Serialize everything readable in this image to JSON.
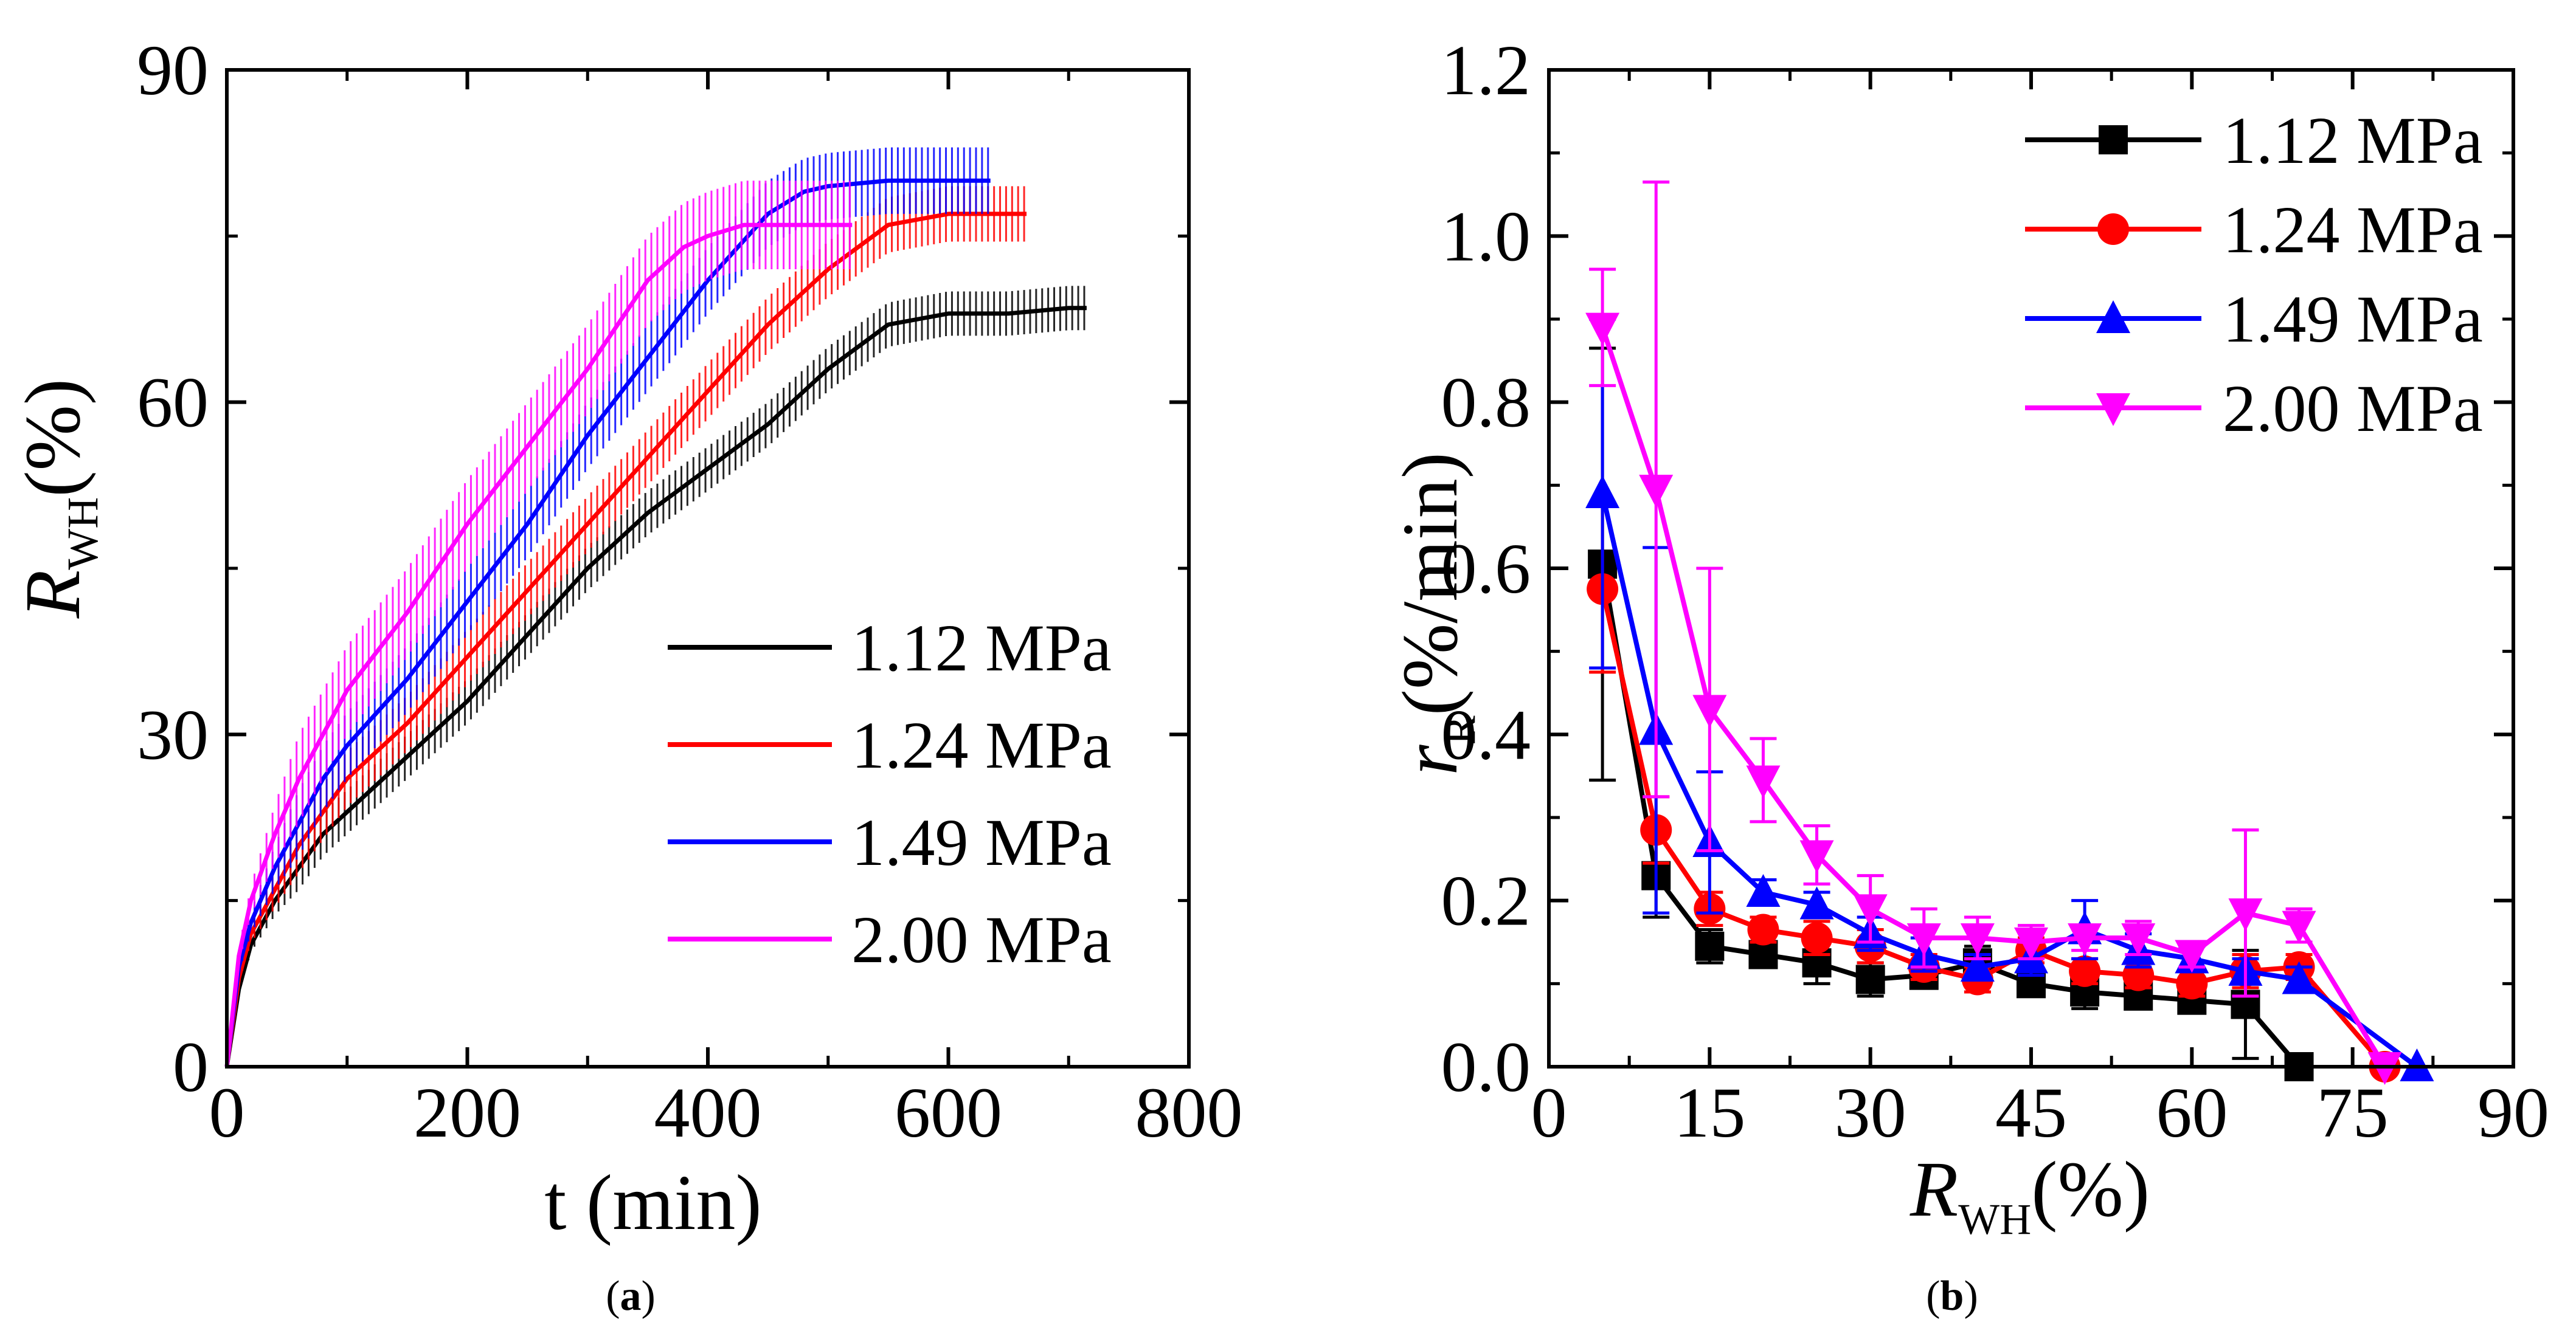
{
  "chart_data": [
    {
      "id": "a",
      "type": "line",
      "panel_label": "a",
      "xlabel": "t (min)",
      "ylabel_main": "R",
      "ylabel_sub": "WH",
      "ylabel_unit": "(%)",
      "xlim": [
        0,
        800
      ],
      "ylim": [
        0,
        90
      ],
      "xticks": [
        "0",
        "200",
        "400",
        "600",
        "800"
      ],
      "yticks": [
        "0",
        "30",
        "60",
        "90"
      ],
      "legend_position": "bottom-right",
      "series": [
        {
          "name": "1.12 MPa",
          "color": "#000000",
          "x": [
            0,
            10,
            20,
            40,
            60,
            80,
            100,
            150,
            200,
            250,
            300,
            350,
            400,
            450,
            500,
            550,
            600,
            650,
            700,
            715
          ],
          "y": [
            0,
            7,
            11,
            15,
            18,
            21,
            23,
            28,
            33,
            39,
            45,
            50,
            54,
            58,
            63,
            67,
            68,
            68,
            68.5,
            68.5
          ],
          "err": 2
        },
        {
          "name": "1.24 MPa",
          "color": "#ff0000",
          "x": [
            0,
            10,
            20,
            40,
            60,
            80,
            100,
            150,
            200,
            250,
            300,
            350,
            400,
            450,
            500,
            550,
            600,
            640,
            665
          ],
          "y": [
            0,
            8,
            12,
            16,
            20,
            23,
            26,
            31,
            37,
            43,
            49,
            55,
            61,
            67,
            72,
            76,
            77,
            77,
            77
          ],
          "err": 2.5
        },
        {
          "name": "1.49 MPa",
          "color": "#0000ff",
          "x": [
            0,
            10,
            20,
            40,
            60,
            80,
            100,
            150,
            200,
            250,
            300,
            350,
            400,
            450,
            480,
            500,
            550,
            600,
            635
          ],
          "y": [
            0,
            9,
            13,
            18,
            22,
            26,
            29,
            35,
            42,
            49,
            57,
            64,
            71,
            77,
            79,
            79.5,
            80,
            80,
            80
          ],
          "err": 3
        },
        {
          "name": "2.00 MPa",
          "color": "#ff00ff",
          "x": [
            0,
            10,
            20,
            40,
            60,
            80,
            100,
            150,
            200,
            250,
            300,
            350,
            380,
            400,
            430,
            460,
            490,
            520
          ],
          "y": [
            0,
            10,
            15,
            21,
            26,
            30,
            34,
            41,
            49,
            56,
            63,
            71,
            74,
            75,
            76,
            76,
            76,
            76
          ],
          "err": 4
        }
      ]
    },
    {
      "id": "b",
      "type": "line",
      "panel_label": "b",
      "xlabel_main": "R",
      "xlabel_sub": "WH",
      "xlabel_unit": "(%)",
      "ylabel_main": "r",
      "ylabel_sub": "R",
      "ylabel_unit": "(%/min)",
      "xlim": [
        0,
        90
      ],
      "ylim": [
        0,
        1.2
      ],
      "xticks": [
        "0",
        "15",
        "30",
        "45",
        "60",
        "75",
        "90"
      ],
      "yticks": [
        "0.0",
        "0.2",
        "0.4",
        "0.6",
        "0.8",
        "1.0",
        "1.2"
      ],
      "legend_position": "top-right",
      "series": [
        {
          "name": "1.12 MPa",
          "color": "#000000",
          "marker": "square",
          "x": [
            5,
            10,
            15,
            20,
            25,
            30,
            35,
            40,
            45,
            50,
            55,
            60,
            65,
            70
          ],
          "y": [
            0.605,
            0.23,
            0.145,
            0.135,
            0.125,
            0.105,
            0.11,
            0.125,
            0.1,
            0.09,
            0.085,
            0.08,
            0.075,
            0.0
          ],
          "err": [
            0.26,
            0.05,
            0.02,
            0.015,
            0.025,
            0.02,
            0.015,
            0.02,
            0.015,
            0.02,
            0.01,
            0.01,
            0.065,
            0
          ]
        },
        {
          "name": "1.24 MPa",
          "color": "#ff0000",
          "marker": "circle",
          "x": [
            5,
            10,
            15,
            20,
            25,
            30,
            35,
            40,
            45,
            50,
            55,
            60,
            65,
            70,
            78
          ],
          "y": [
            0.575,
            0.285,
            0.19,
            0.165,
            0.155,
            0.145,
            0.12,
            0.105,
            0.14,
            0.115,
            0.11,
            0.1,
            0.115,
            0.12,
            0.0
          ],
          "err": [
            0.1,
            0.04,
            0.02,
            0.015,
            0.02,
            0.02,
            0.015,
            0.015,
            0.015,
            0.015,
            0.015,
            0.015,
            0.02,
            0.015,
            0
          ]
        },
        {
          "name": "1.49 MPa",
          "color": "#0000ff",
          "marker": "triangle-up",
          "x": [
            5,
            10,
            15,
            20,
            25,
            30,
            35,
            40,
            45,
            50,
            55,
            60,
            65,
            70,
            81
          ],
          "y": [
            0.69,
            0.405,
            0.27,
            0.21,
            0.195,
            0.16,
            0.135,
            0.12,
            0.13,
            0.165,
            0.14,
            0.13,
            0.115,
            0.105,
            0.0
          ],
          "err": [
            0.21,
            0.22,
            0.085,
            0.015,
            0.015,
            0.02,
            0.02,
            0.015,
            0.02,
            0.035,
            0.02,
            0.015,
            0.015,
            0.015,
            0
          ]
        },
        {
          "name": "2.00 MPa",
          "color": "#ff00ff",
          "marker": "triangle-down",
          "x": [
            5,
            10,
            15,
            20,
            25,
            30,
            35,
            40,
            45,
            50,
            55,
            60,
            65,
            70,
            78
          ],
          "y": [
            0.89,
            0.695,
            0.43,
            0.345,
            0.255,
            0.19,
            0.155,
            0.155,
            0.15,
            0.155,
            0.155,
            0.135,
            0.185,
            0.17,
            0.0
          ],
          "err": [
            0.07,
            0.37,
            0.17,
            0.05,
            0.035,
            0.04,
            0.035,
            0.025,
            0.02,
            0.015,
            0.02,
            0.015,
            0.1,
            0.02,
            0
          ]
        }
      ]
    }
  ]
}
